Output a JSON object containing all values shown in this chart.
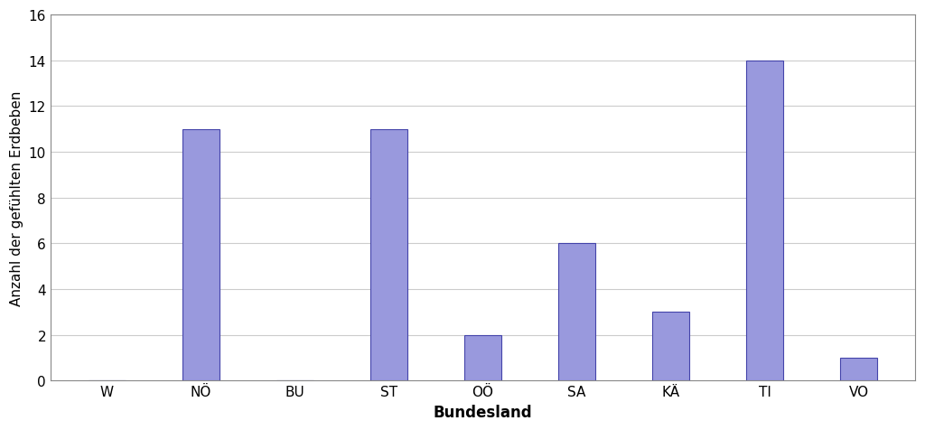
{
  "categories": [
    "W",
    "NÖ",
    "BU",
    "ST",
    "OÖ",
    "SA",
    "KÄ",
    "TI",
    "VO"
  ],
  "values": [
    0,
    11,
    0,
    11,
    2,
    6,
    3,
    14,
    1
  ],
  "bar_color": "#9999dd",
  "bar_edgecolor": "#4444aa",
  "title": "",
  "xlabel": "Bundesland",
  "ylabel": "Anzahl der gefühlten Erdbeben",
  "ylim": [
    0,
    16
  ],
  "yticks": [
    0,
    2,
    4,
    6,
    8,
    10,
    12,
    14,
    16
  ],
  "background_color": "#ffffff",
  "grid_color": "#cccccc",
  "xlabel_fontsize": 12,
  "ylabel_fontsize": 11,
  "tick_fontsize": 11,
  "bar_width": 0.4
}
